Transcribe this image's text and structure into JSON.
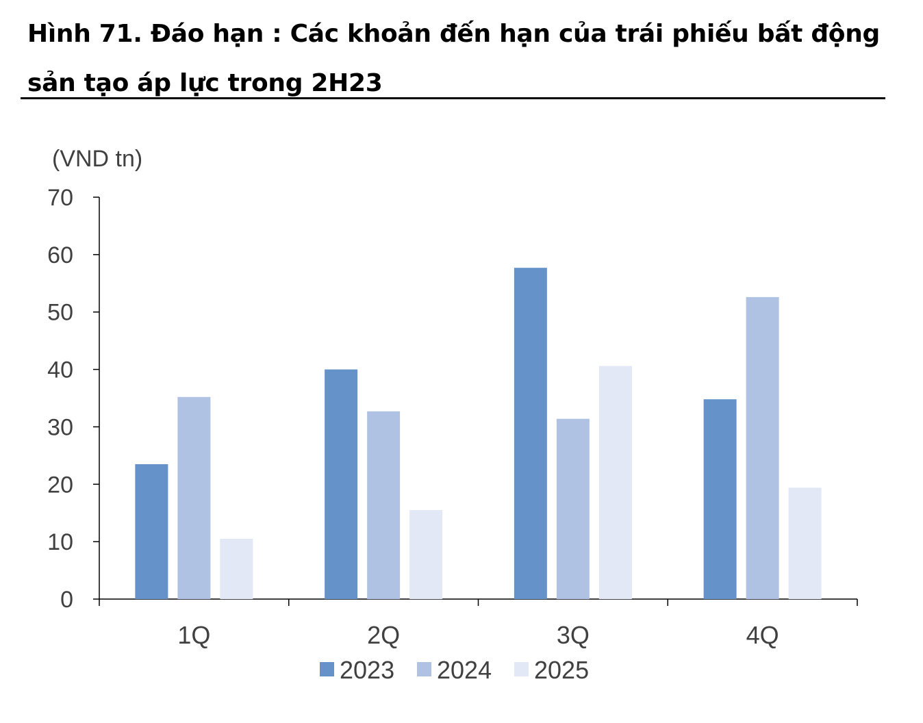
{
  "figure": {
    "title": "Hình 71. Đáo hạn : Các khoản đến hạn của trái phiếu bất động sản tạo áp lực trong 2H23"
  },
  "chart_data": {
    "type": "bar",
    "unit_label": "(VND tn)",
    "categories": [
      "1Q",
      "2Q",
      "3Q",
      "4Q"
    ],
    "series": [
      {
        "name": "2023",
        "color": "#6592c9",
        "values": [
          23.5,
          40.0,
          57.7,
          34.8
        ]
      },
      {
        "name": "2024",
        "color": "#b0c2e3",
        "values": [
          35.2,
          32.7,
          31.4,
          52.6
        ]
      },
      {
        "name": "2025",
        "color": "#e2e8f5",
        "values": [
          10.5,
          15.5,
          40.6,
          19.4
        ]
      }
    ],
    "ylim": [
      0,
      70
    ],
    "yticks": [
      0,
      10,
      20,
      30,
      40,
      50,
      60,
      70
    ],
    "grid": false,
    "legend_position": "bottom-center",
    "xlabel": "",
    "ylabel": ""
  }
}
